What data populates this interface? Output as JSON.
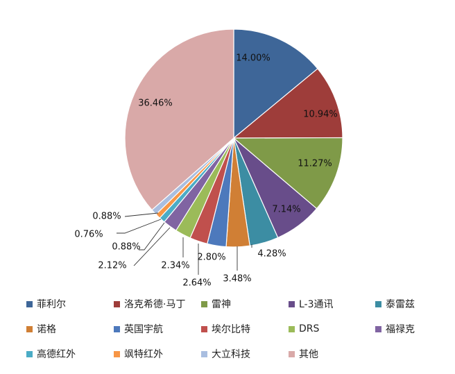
{
  "chart_data": {
    "type": "pie",
    "title": "",
    "series": [
      {
        "name": "菲利尔",
        "value": 14.0,
        "label": "14.00%",
        "color": "#3E6698"
      },
      {
        "name": "洛克希德·马丁",
        "value": 10.94,
        "label": "10.94%",
        "color": "#9E3D3A"
      },
      {
        "name": "雷神",
        "value": 11.27,
        "label": "11.27%",
        "color": "#7F9A48"
      },
      {
        "name": "L-3通讯",
        "value": 7.14,
        "label": "7.14%",
        "color": "#684D8A"
      },
      {
        "name": "泰雷兹",
        "value": 4.28,
        "label": "4.28%",
        "color": "#3C8DA3"
      },
      {
        "name": "诺格",
        "value": 3.48,
        "label": "3.48%",
        "color": "#D07F35"
      },
      {
        "name": "英国宇航",
        "value": 2.8,
        "label": "2.80%",
        "color": "#4D79BC"
      },
      {
        "name": "埃尔比特",
        "value": 2.64,
        "label": "2.64%",
        "color": "#C0504D"
      },
      {
        "name": "DRS",
        "value": 2.34,
        "label": "2.34%",
        "color": "#9BBB59"
      },
      {
        "name": "福禄克",
        "value": 2.12,
        "label": "2.12%",
        "color": "#8064A2"
      },
      {
        "name": "高德红外",
        "value": 0.88,
        "label": "0.88%",
        "color": "#4BACC6"
      },
      {
        "name": "飒特红外",
        "value": 0.76,
        "label": "0.76%",
        "color": "#F79646"
      },
      {
        "name": "大立科技",
        "value": 0.88,
        "label": "0.88%",
        "color": "#A9BEE0"
      },
      {
        "name": "其他",
        "value": 36.46,
        "label": "36.46%",
        "color": "#D9A9A8"
      }
    ],
    "start_angle": "12 o'clock",
    "direction": "clockwise",
    "legend_placement": "bottom"
  }
}
